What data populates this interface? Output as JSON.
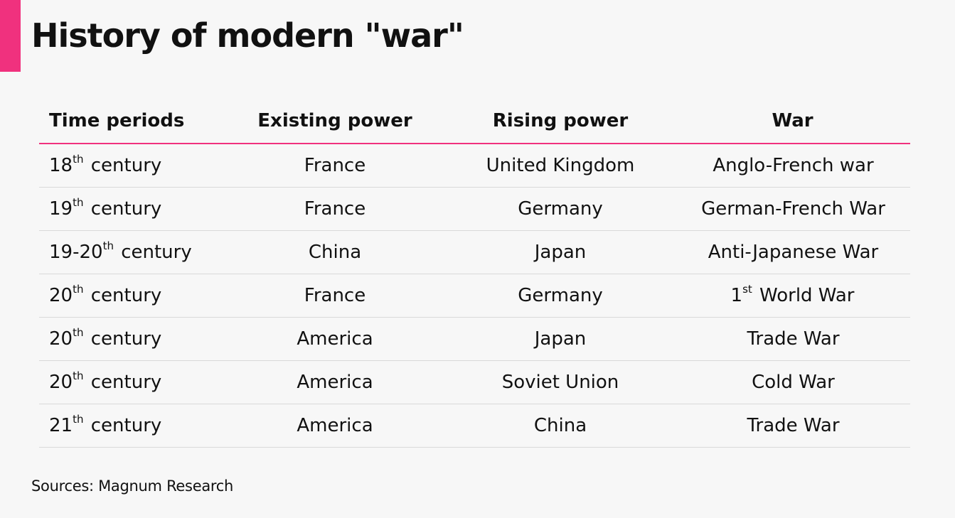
{
  "title": "History of modern \"war\"",
  "colors": {
    "accent": "#f0317e",
    "row_divider": "#d9d9d9",
    "background": "#f7f7f7"
  },
  "table": {
    "headers": [
      "Time periods",
      "Existing power",
      "Rising power",
      "War"
    ],
    "rows": [
      {
        "period": "18",
        "period_sup": "th",
        "period_suffix": "century",
        "existing": "France",
        "rising": "United Kingdom",
        "war_prefix": "",
        "war_sup": "",
        "war": "Anglo-French war"
      },
      {
        "period": "19",
        "period_sup": "th",
        "period_suffix": "century",
        "existing": "France",
        "rising": "Germany",
        "war_prefix": "",
        "war_sup": "",
        "war": "German-French War"
      },
      {
        "period": "19-20",
        "period_sup": "th",
        "period_suffix": "century",
        "existing": "China",
        "rising": "Japan",
        "war_prefix": "",
        "war_sup": "",
        "war": "Anti-Japanese War"
      },
      {
        "period": "20",
        "period_sup": "th",
        "period_suffix": "century",
        "existing": "France",
        "rising": "Germany",
        "war_prefix": "1",
        "war_sup": "st",
        "war": "World War"
      },
      {
        "period": "20",
        "period_sup": "th",
        "period_suffix": "century",
        "existing": "America",
        "rising": "Japan",
        "war_prefix": "",
        "war_sup": "",
        "war": "Trade War"
      },
      {
        "period": "20",
        "period_sup": "th",
        "period_suffix": "century",
        "existing": "America",
        "rising": "Soviet Union",
        "war_prefix": "",
        "war_sup": "",
        "war": "Cold War"
      },
      {
        "period": "21",
        "period_sup": "th",
        "period_suffix": "century",
        "existing": "America",
        "rising": "China",
        "war_prefix": "",
        "war_sup": "",
        "war": "Trade War"
      }
    ]
  },
  "source": "Sources: Magnum Research"
}
